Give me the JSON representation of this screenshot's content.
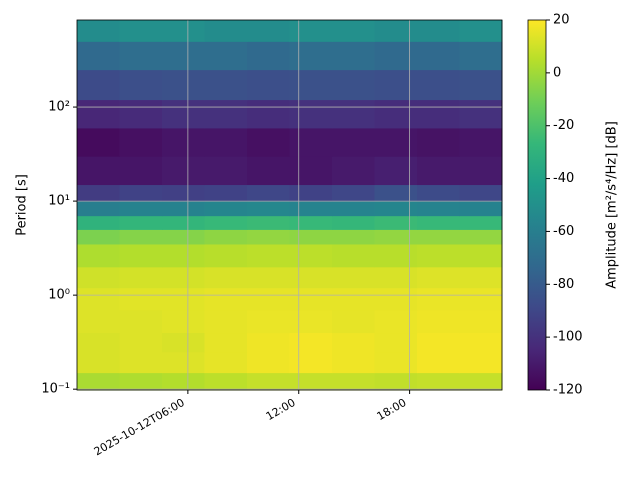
{
  "chart_data": {
    "type": "heatmap",
    "ylabel": "Period [s]",
    "colorbar_label": "Amplitude [m²/s⁴/Hz] [dB]",
    "colormap": "viridis",
    "x": [
      0,
      2.3,
      4.6,
      6.9,
      9.2,
      11.5,
      13.8,
      16.1,
      18.4,
      20.7,
      23
    ],
    "y": [
      0.098,
      0.15,
      0.25,
      0.4,
      0.7,
      1.2,
      2,
      3.5,
      5,
      7,
      10,
      15,
      30,
      60,
      120,
      250,
      500,
      843
    ],
    "z": [
      [
        2,
        3,
        4,
        6,
        8,
        8,
        8,
        7,
        8,
        8
      ],
      [
        12,
        13,
        13,
        15,
        17,
        18,
        17,
        16,
        18,
        18
      ],
      [
        12,
        13,
        12,
        15,
        17,
        18,
        17,
        16,
        18,
        18
      ],
      [
        13,
        13,
        14,
        15,
        16,
        16,
        15,
        16,
        17,
        17
      ],
      [
        13,
        14,
        14,
        15,
        15,
        15,
        15,
        15,
        16,
        16
      ],
      [
        10,
        11,
        11,
        12,
        12,
        12,
        12,
        12,
        13,
        13
      ],
      [
        3,
        4,
        4,
        5,
        6,
        6,
        5,
        5,
        6,
        6
      ],
      [
        -8,
        -6,
        -6,
        -4,
        -3,
        -4,
        -4,
        -3,
        -3,
        -3
      ],
      [
        -30,
        -28,
        -28,
        -26,
        -25,
        -26,
        -27,
        -25,
        -26,
        -26
      ],
      [
        -60,
        -58,
        -58,
        -56,
        -55,
        -57,
        -57,
        -56,
        -57,
        -58
      ],
      [
        -95,
        -92,
        -93,
        -92,
        -90,
        -92,
        -90,
        -85,
        -88,
        -90
      ],
      [
        -112,
        -112,
        -110,
        -110,
        -112,
        -112,
        -110,
        -108,
        -110,
        -110
      ],
      [
        -116,
        -114,
        -112,
        -112,
        -114,
        -112,
        -112,
        -112,
        -113,
        -112
      ],
      [
        -105,
        -103,
        -100,
        -100,
        -102,
        -100,
        -100,
        -102,
        -102,
        -100
      ],
      [
        -88,
        -86,
        -85,
        -85,
        -86,
        -85,
        -85,
        -86,
        -86,
        -85
      ],
      [
        -72,
        -70,
        -70,
        -70,
        -72,
        -70,
        -70,
        -72,
        -72,
        -70
      ],
      [
        -52,
        -50,
        -50,
        -52,
        -52,
        -50,
        -50,
        -52,
        -52,
        -50
      ]
    ],
    "xlim": [
      0,
      23
    ],
    "xticks": [
      {
        "value": 6,
        "label": "2025-10-12T06:00"
      },
      {
        "value": 12,
        "label": "12:00"
      },
      {
        "value": 18,
        "label": "18:00"
      }
    ],
    "ylim": [
      0.098,
      843
    ],
    "yscale": "log",
    "yticks": [
      {
        "value": 0.1,
        "label": "10⁻¹"
      },
      {
        "value": 1,
        "label": "10⁰"
      },
      {
        "value": 10,
        "label": "10¹"
      },
      {
        "value": 100,
        "label": "10²"
      }
    ],
    "clim": [
      -120,
      20
    ],
    "cticks": [
      -120,
      -100,
      -80,
      -60,
      -40,
      -20,
      0,
      20
    ],
    "grid": true
  }
}
